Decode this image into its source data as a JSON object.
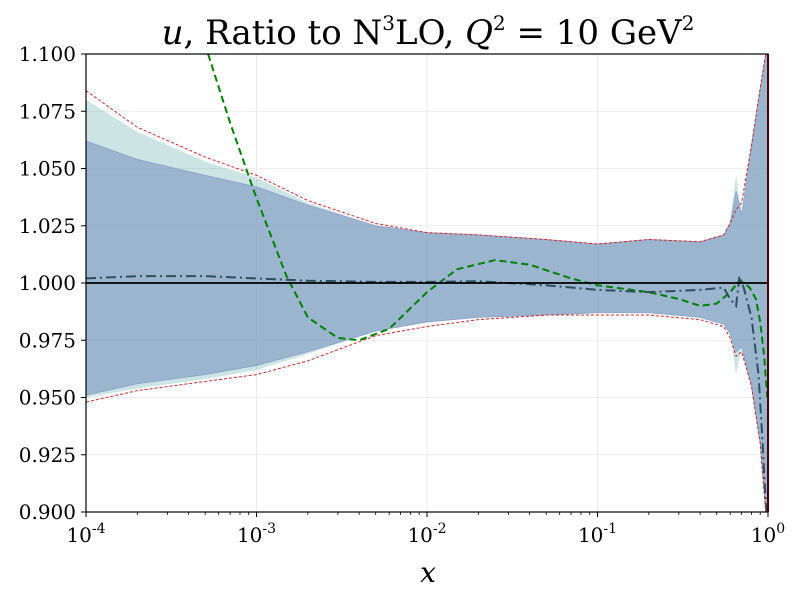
{
  "chart_data": {
    "type": "line",
    "title": "u, Ratio to N³LO, Q² = 10 GeV²",
    "title_parts": {
      "var": "u",
      "mid": ", Ratio to N",
      "exp3": "3",
      "lo": "LO, ",
      "q": "Q",
      "exp2": "2",
      "eq": " = 10 GeV",
      "exp2b": "2"
    },
    "xlabel": "x",
    "ylabel": "",
    "xscale": "log",
    "xlim": [
      0.0001,
      1
    ],
    "ylim": [
      0.9,
      1.1
    ],
    "grid": true,
    "y_ticks": [
      "0.900",
      "0.925",
      "0.950",
      "0.975",
      "1.000",
      "1.025",
      "1.050",
      "1.075",
      "1.100"
    ],
    "y_tick_values": [
      0.9,
      0.925,
      0.95,
      0.975,
      1.0,
      1.025,
      1.05,
      1.075,
      1.1
    ],
    "x_ticks": [
      {
        "value": 0.0001,
        "base": "10",
        "exp": "-4"
      },
      {
        "value": 0.001,
        "base": "10",
        "exp": "-3"
      },
      {
        "value": 0.01,
        "base": "10",
        "exp": "-2"
      },
      {
        "value": 0.1,
        "base": "10",
        "exp": "-1"
      },
      {
        "value": 1,
        "base": "10",
        "exp": "0"
      }
    ],
    "colors": {
      "teal_band": "#7ab8b8",
      "blue_band": "#7a97bf",
      "red_dashed": "#d62728",
      "green_dashed": "#008000",
      "dashdot": "#2f4f5f",
      "reference": "#000000"
    },
    "series": [
      {
        "style": "band-teal",
        "x": [
          0.0001,
          0.0002,
          0.0005,
          0.001,
          0.002,
          0.005,
          0.01,
          0.02,
          0.05,
          0.1,
          0.2,
          0.4,
          0.55,
          0.6,
          0.65,
          0.7,
          0.8,
          0.9,
          0.97,
          1.0
        ],
        "upper": [
          1.08,
          1.066,
          1.053,
          1.046,
          1.035,
          1.025,
          1.022,
          1.021,
          1.019,
          1.017,
          1.019,
          1.018,
          1.021,
          1.027,
          1.047,
          1.03,
          1.06,
          1.085,
          1.1,
          1.1
        ],
        "lower": [
          0.95,
          0.954,
          0.958,
          0.962,
          0.969,
          0.979,
          0.983,
          0.985,
          0.986,
          0.987,
          0.987,
          0.985,
          0.982,
          0.977,
          0.96,
          0.972,
          0.955,
          0.93,
          0.9,
          0.9
        ]
      },
      {
        "style": "band-blue",
        "x": [
          0.0001,
          0.0002,
          0.0005,
          0.001,
          0.002,
          0.005,
          0.01,
          0.02,
          0.05,
          0.1,
          0.2,
          0.4,
          0.55,
          0.6,
          0.65,
          0.7,
          0.8,
          0.9,
          0.97,
          1.0
        ],
        "upper": [
          1.062,
          1.054,
          1.047,
          1.042,
          1.034,
          1.025,
          1.022,
          1.021,
          1.019,
          1.017,
          1.019,
          1.018,
          1.021,
          1.026,
          1.04,
          1.03,
          1.06,
          1.085,
          1.1,
          1.1
        ],
        "lower": [
          0.951,
          0.956,
          0.96,
          0.964,
          0.97,
          0.979,
          0.983,
          0.985,
          0.986,
          0.987,
          0.987,
          0.985,
          0.982,
          0.978,
          0.97,
          0.972,
          0.955,
          0.93,
          0.9,
          0.9
        ]
      },
      {
        "style": "red-dashed-upper",
        "x": [
          0.0001,
          0.0002,
          0.0005,
          0.001,
          0.002,
          0.005,
          0.01,
          0.02,
          0.05,
          0.1,
          0.2,
          0.4,
          0.55,
          0.6,
          0.65,
          0.7,
          0.8,
          0.9,
          0.97,
          1.0
        ],
        "y": [
          1.084,
          1.068,
          1.055,
          1.047,
          1.036,
          1.026,
          1.022,
          1.021,
          1.019,
          1.017,
          1.019,
          1.018,
          1.021,
          1.026,
          1.032,
          1.035,
          1.06,
          1.085,
          1.1,
          1.1
        ]
      },
      {
        "style": "red-dashed-lower",
        "x": [
          0.0001,
          0.0002,
          0.0005,
          0.001,
          0.002,
          0.005,
          0.01,
          0.02,
          0.05,
          0.1,
          0.2,
          0.4,
          0.55,
          0.6,
          0.65,
          0.7,
          0.8,
          0.9,
          0.97,
          1.0
        ],
        "y": [
          0.948,
          0.953,
          0.957,
          0.96,
          0.966,
          0.977,
          0.981,
          0.984,
          0.986,
          0.986,
          0.986,
          0.984,
          0.981,
          0.976,
          0.968,
          0.97,
          0.955,
          0.93,
          0.9,
          0.9
        ]
      },
      {
        "style": "green-dashed",
        "x": [
          0.00052,
          0.0007,
          0.001,
          0.0015,
          0.002,
          0.003,
          0.004,
          0.006,
          0.01,
          0.015,
          0.025,
          0.04,
          0.07,
          0.1,
          0.2,
          0.3,
          0.4,
          0.5,
          0.6,
          0.68,
          0.72,
          0.78,
          0.85,
          0.9,
          0.95,
          0.99
        ],
        "y": [
          1.1,
          1.07,
          1.037,
          1.003,
          0.985,
          0.976,
          0.975,
          0.98,
          0.996,
          1.006,
          1.01,
          1.008,
          1.002,
          0.999,
          0.996,
          0.993,
          0.99,
          0.991,
          0.996,
          1.001,
          1.0,
          0.998,
          0.993,
          0.983,
          0.968,
          0.95
        ]
      },
      {
        "style": "dash-dot",
        "x": [
          0.0001,
          0.0002,
          0.0005,
          0.001,
          0.002,
          0.005,
          0.01,
          0.02,
          0.05,
          0.1,
          0.2,
          0.4,
          0.55,
          0.6,
          0.65,
          0.68,
          0.72,
          0.8,
          0.88,
          0.93,
          0.96,
          0.98
        ],
        "y": [
          1.002,
          1.003,
          1.003,
          1.002,
          1.001,
          1.0005,
          1.0005,
          1.0008,
          0.999,
          0.997,
          0.996,
          0.997,
          0.998,
          0.993,
          0.99,
          1.003,
          0.998,
          0.985,
          0.96,
          0.93,
          0.91,
          0.9
        ]
      },
      {
        "style": "reference",
        "x": [
          0.0001,
          1.0
        ],
        "y": [
          1.0,
          1.0
        ]
      }
    ]
  }
}
